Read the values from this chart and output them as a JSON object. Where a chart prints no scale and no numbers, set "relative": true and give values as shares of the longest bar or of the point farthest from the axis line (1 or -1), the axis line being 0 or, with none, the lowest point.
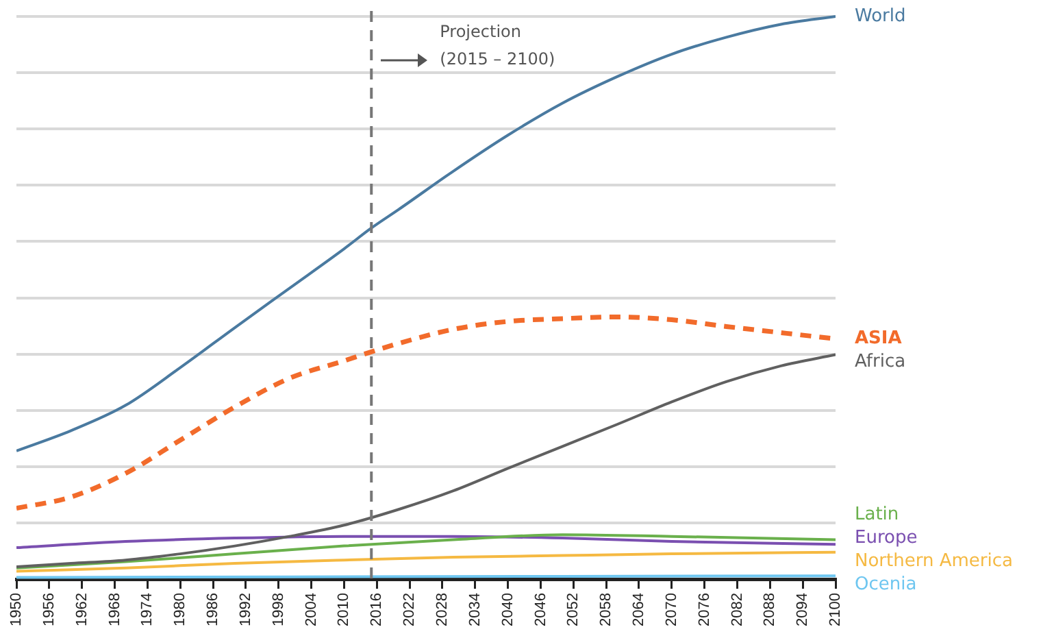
{
  "chart_data": {
    "type": "line",
    "relative": true,
    "grid": "y",
    "legend": false,
    "marker": "none",
    "xlim": [
      1950,
      2100
    ],
    "xticks": [
      1950,
      1956,
      1962,
      1968,
      1974,
      1980,
      1986,
      1992,
      1998,
      2004,
      2010,
      2016,
      2022,
      2028,
      2034,
      2040,
      2046,
      2052,
      2058,
      2064,
      2070,
      2076,
      2082,
      2088,
      2094,
      2100
    ],
    "series": [
      {
        "name": "World",
        "color": "#4a7aa0",
        "x": [
          1950,
          1960,
          1970,
          1980,
          1990,
          2000,
          2010,
          2015,
          2020,
          2030,
          2040,
          2050,
          2060,
          2070,
          2080,
          2090,
          2100
        ],
        "values": [
          0.228,
          0.264,
          0.309,
          0.376,
          0.447,
          0.517,
          0.587,
          0.624,
          0.657,
          0.725,
          0.789,
          0.846,
          0.893,
          0.933,
          0.963,
          0.986,
          1
        ]
      },
      {
        "name": "ASIA",
        "color": "#f26b2b",
        "line_style": "dashed",
        "x": [
          1950,
          1960,
          1970,
          1980,
          1990,
          2000,
          2010,
          2015,
          2020,
          2030,
          2040,
          2050,
          2060,
          2070,
          2080,
          2090,
          2100
        ],
        "values": [
          0.126,
          0.146,
          0.188,
          0.247,
          0.306,
          0.357,
          0.388,
          0.404,
          0.419,
          0.444,
          0.458,
          0.463,
          0.466,
          0.461,
          0.449,
          0.438,
          0.427
        ]
      },
      {
        "name": "Africa",
        "color": "#606060",
        "x": [
          1950,
          1960,
          1970,
          1980,
          1990,
          2000,
          2010,
          2020,
          2030,
          2040,
          2050,
          2060,
          2070,
          2080,
          2090,
          2100
        ],
        "values": [
          0.022,
          0.028,
          0.034,
          0.045,
          0.059,
          0.076,
          0.096,
          0.124,
          0.157,
          0.197,
          0.236,
          0.275,
          0.315,
          0.351,
          0.379,
          0.399
        ]
      },
      {
        "name": "Latin",
        "color": "#6ab04c",
        "x": [
          1950,
          1970,
          1990,
          2010,
          2030,
          2050,
          2070,
          2100
        ],
        "values": [
          0.02,
          0.031,
          0.045,
          0.059,
          0.07,
          0.079,
          0.076,
          0.07
        ]
      },
      {
        "name": "Europe",
        "color": "#7a4fb0",
        "x": [
          1950,
          1970,
          1990,
          2010,
          2030,
          2050,
          2070,
          2100
        ],
        "values": [
          0.056,
          0.067,
          0.073,
          0.076,
          0.076,
          0.073,
          0.067,
          0.062
        ]
      },
      {
        "name": "Northern America",
        "color": "#f5b942",
        "x": [
          1950,
          1970,
          1990,
          2010,
          2030,
          2050,
          2070,
          2100
        ],
        "values": [
          0.014,
          0.02,
          0.028,
          0.034,
          0.039,
          0.042,
          0.045,
          0.048
        ]
      },
      {
        "name": "Ocenia",
        "color": "#6ec6f0",
        "x": [
          1950,
          2000,
          2050,
          2100
        ],
        "values": [
          0.003,
          0.004,
          0.005,
          0.006
        ]
      }
    ],
    "ref_lines": [
      {
        "axis": "x",
        "value": 2015,
        "color": "#777777",
        "line_style": "dashed"
      }
    ],
    "annotations": [
      "Projection\n(2015 – 2100)"
    ]
  }
}
